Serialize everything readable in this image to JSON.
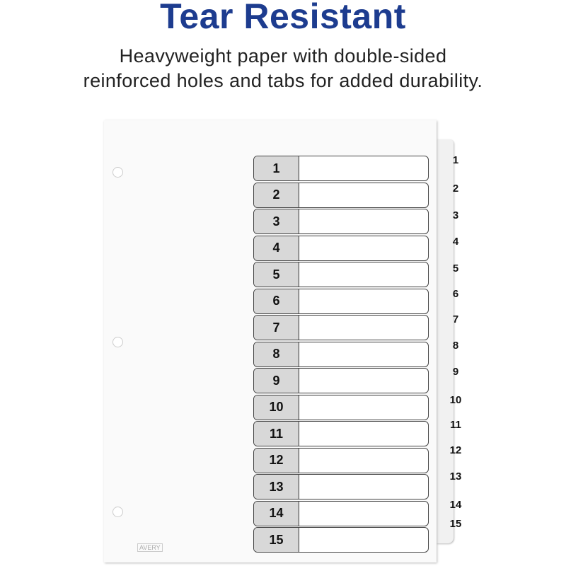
{
  "heading": {
    "title": "Tear Resistant",
    "subtitle_line1": "Heavyweight paper with double-sided",
    "subtitle_line2": "reinforced holes and tabs for added durability."
  },
  "divider": {
    "brand": "AVERY",
    "toc_numbers": [
      "1",
      "2",
      "3",
      "4",
      "5",
      "6",
      "7",
      "8",
      "9",
      "10",
      "11",
      "12",
      "13",
      "14",
      "15"
    ],
    "tab_labels": [
      "1",
      "2",
      "3",
      "4",
      "5",
      "6",
      "7",
      "8",
      "9",
      "10",
      "11",
      "12",
      "13",
      "14",
      "15"
    ]
  },
  "colors": {
    "title": "#1d3c8f",
    "number_cell": "#d8d8d8"
  }
}
